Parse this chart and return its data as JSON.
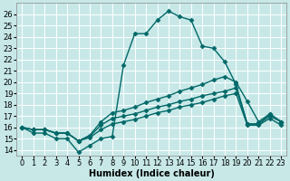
{
  "xlabel": "Humidex (Indice chaleur)",
  "bg_color": "#c8e8e8",
  "grid_color": "#ffffff",
  "line_color": "#006868",
  "xlim": [
    -0.5,
    23.5
  ],
  "ylim": [
    13.5,
    27
  ],
  "xticks": [
    0,
    1,
    2,
    3,
    4,
    5,
    6,
    7,
    8,
    9,
    10,
    11,
    12,
    13,
    14,
    15,
    16,
    17,
    18,
    19,
    20,
    21,
    22,
    23
  ],
  "yticks": [
    14,
    15,
    16,
    17,
    18,
    19,
    20,
    21,
    22,
    23,
    24,
    25,
    26
  ],
  "lines": [
    {
      "x": [
        0,
        1,
        2,
        3,
        4,
        5,
        6,
        7,
        8,
        9,
        10,
        11,
        12,
        13,
        14,
        15,
        16,
        17,
        18,
        19,
        20,
        21,
        22,
        23
      ],
      "y": [
        16,
        15.5,
        15.5,
        15.0,
        15.0,
        13.8,
        14.4,
        15.0,
        15.2,
        21.5,
        24.3,
        24.3,
        25.5,
        26.3,
        25.8,
        25.5,
        23.2,
        23.0,
        21.8,
        19.8,
        16.3,
        16.3,
        17.2,
        16.5
      ]
    },
    {
      "x": [
        0,
        1,
        2,
        3,
        4,
        5,
        6,
        7,
        8,
        9,
        10,
        11,
        12,
        13,
        14,
        15,
        16,
        17,
        18,
        19,
        20,
        21,
        22,
        23
      ],
      "y": [
        16,
        15.8,
        15.8,
        15.5,
        15.5,
        14.8,
        15.3,
        16.5,
        17.3,
        17.5,
        17.8,
        18.2,
        18.5,
        18.8,
        19.2,
        19.5,
        19.8,
        20.2,
        20.5,
        20.0,
        18.3,
        16.5,
        17.2,
        16.5
      ]
    },
    {
      "x": [
        0,
        1,
        2,
        3,
        4,
        5,
        6,
        7,
        8,
        9,
        10,
        11,
        12,
        13,
        14,
        15,
        16,
        17,
        18,
        19,
        20,
        21,
        22,
        23
      ],
      "y": [
        16,
        15.8,
        15.8,
        15.5,
        15.5,
        14.8,
        15.2,
        16.2,
        16.8,
        17.0,
        17.2,
        17.5,
        17.8,
        18.0,
        18.3,
        18.5,
        18.8,
        19.0,
        19.2,
        19.5,
        16.3,
        16.3,
        17.0,
        16.5
      ]
    },
    {
      "x": [
        0,
        1,
        2,
        3,
        4,
        5,
        6,
        7,
        8,
        9,
        10,
        11,
        12,
        13,
        14,
        15,
        16,
        17,
        18,
        19,
        20,
        21,
        22,
        23
      ],
      "y": [
        16,
        15.8,
        15.8,
        15.5,
        15.5,
        14.8,
        15.1,
        15.8,
        16.3,
        16.5,
        16.7,
        17.0,
        17.3,
        17.5,
        17.8,
        18.0,
        18.2,
        18.5,
        18.8,
        19.0,
        16.2,
        16.2,
        16.8,
        16.2
      ]
    }
  ],
  "marker": "D",
  "markersize": 2.5,
  "linewidth": 1.0,
  "axis_fontsize": 7,
  "tick_fontsize": 6
}
